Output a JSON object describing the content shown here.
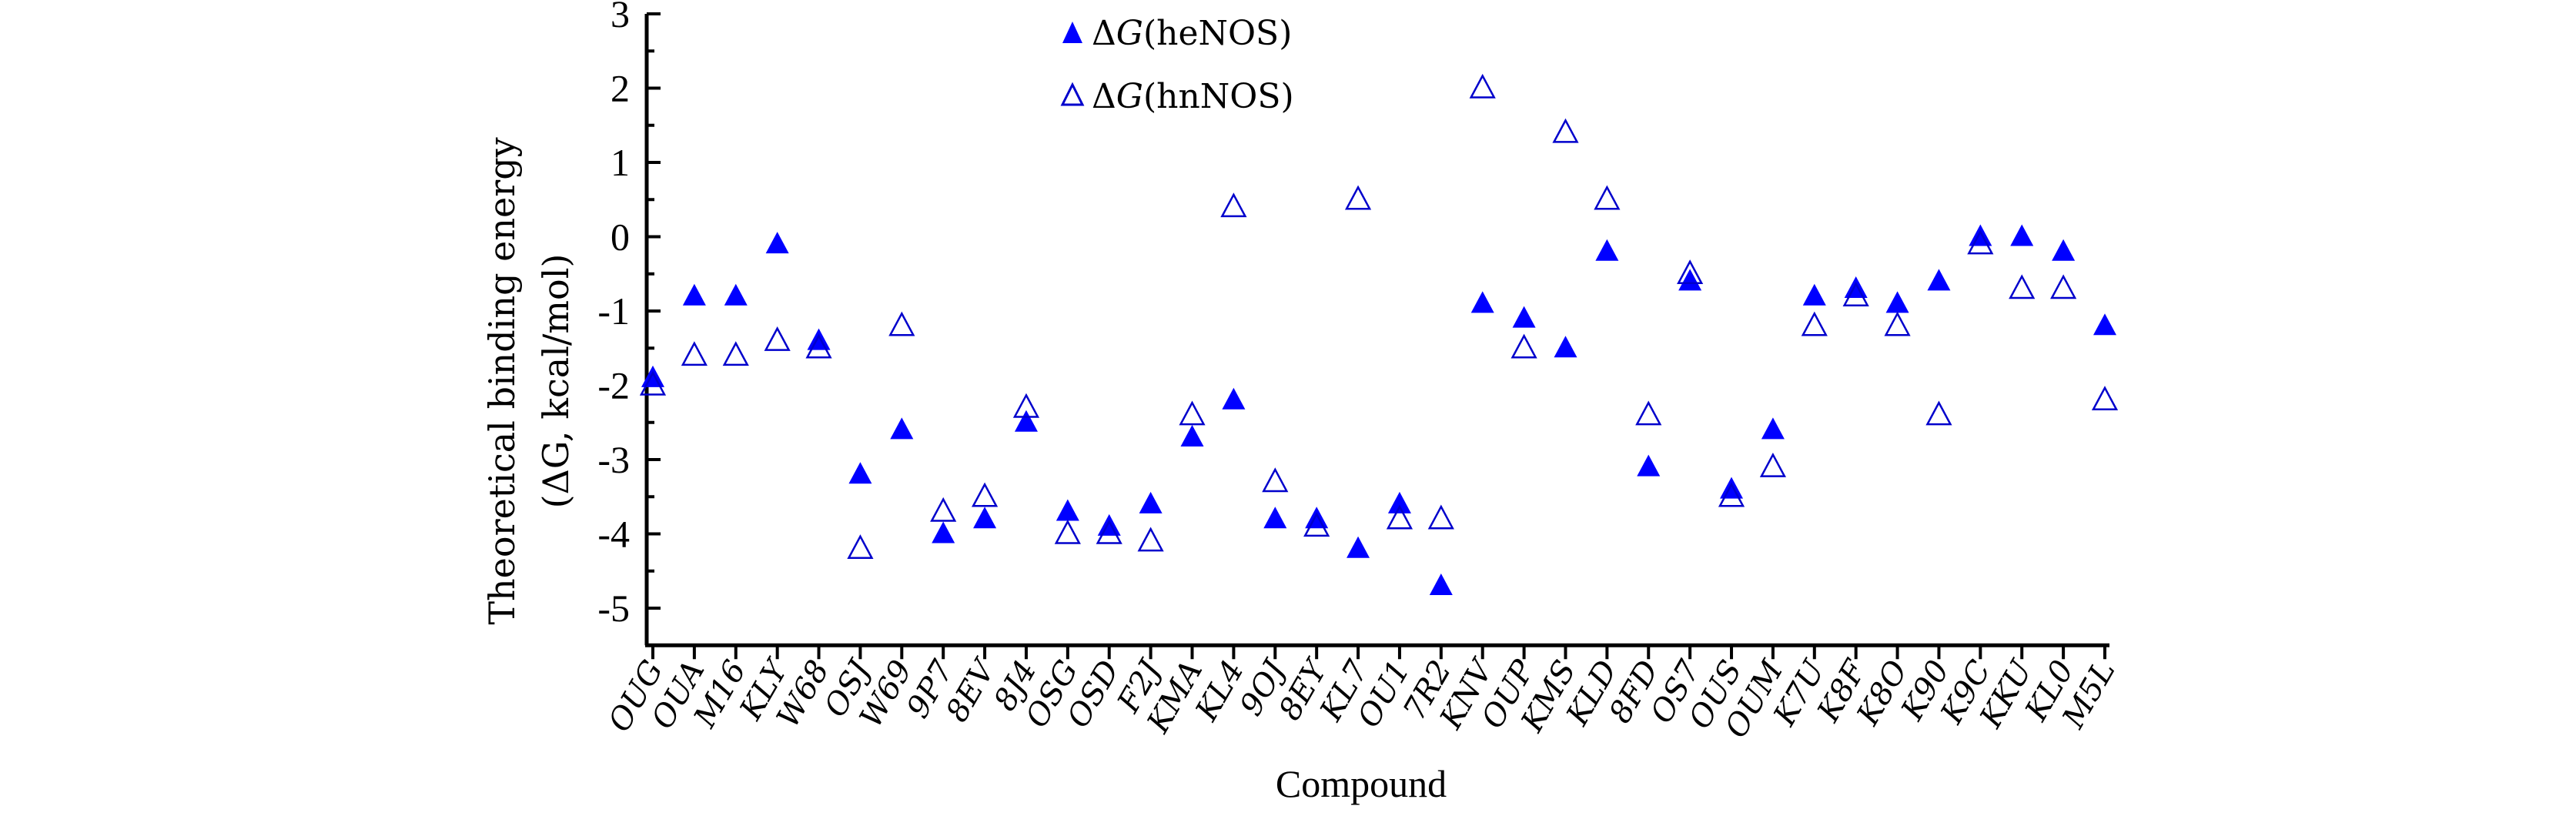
{
  "chart_data": {
    "type": "scatter",
    "title": "",
    "xlabel": "Compound",
    "ylabel": "Theoretical binding energy (ΔG, kcal/mol)",
    "ylabel_line1": "Theoretical binding energy",
    "ylabel_line2": "(ΔG, kcal/mol)",
    "ylim": [
      -5.5,
      3
    ],
    "yticks": [
      3,
      2,
      1,
      0,
      -1,
      -2,
      -3,
      -4,
      -5
    ],
    "grid": false,
    "legend_position": "top-center",
    "categories": [
      "OUG",
      "OUA",
      "M16",
      "KLY",
      "W68",
      "OSJ",
      "W69",
      "9P7",
      "8EV",
      "8J4",
      "OSG",
      "OSD",
      "F2J",
      "KMA",
      "KL4",
      "9OJ",
      "8EY",
      "KL7",
      "OU1",
      "7R2",
      "KNV",
      "OUP",
      "KMS",
      "KLD",
      "8FD",
      "OS7",
      "OUS",
      "OUM",
      "K7U",
      "K8F",
      "K8O",
      "K90",
      "K9C",
      "KKU",
      "KL0",
      "M5L"
    ],
    "series": [
      {
        "name": "ΔG(heNOS)",
        "marker": "filled-triangle",
        "color": "#0000ff",
        "values": [
          -1.9,
          -0.8,
          -0.8,
          -0.1,
          -1.4,
          -3.2,
          -2.6,
          -4.0,
          -3.8,
          -2.5,
          -3.7,
          -3.9,
          -3.6,
          -2.7,
          -2.2,
          -3.8,
          -3.8,
          -4.2,
          -3.6,
          -4.7,
          -0.9,
          -1.1,
          -1.5,
          -0.2,
          -3.1,
          -0.6,
          -3.4,
          -2.6,
          -0.8,
          -0.7,
          -0.9,
          -0.6,
          0.0,
          0.0,
          -0.2,
          -1.2
        ]
      },
      {
        "name": "ΔG(hnNOS)",
        "marker": "open-triangle",
        "color": "#0000cc",
        "values": [
          -2.0,
          -1.6,
          -1.6,
          -1.4,
          -1.5,
          -4.2,
          -1.2,
          -3.7,
          -3.5,
          -2.3,
          -4.0,
          -4.0,
          -4.1,
          -2.4,
          0.4,
          -3.3,
          -3.9,
          0.5,
          -3.8,
          -3.8,
          2.0,
          -1.5,
          1.4,
          0.5,
          -2.4,
          -0.5,
          -3.5,
          -3.1,
          -1.2,
          -0.8,
          -1.2,
          -2.4,
          -0.1,
          -0.7,
          -0.7,
          -2.2
        ]
      }
    ]
  },
  "legend": {
    "items": [
      {
        "label_prefix": "Δ",
        "label_var": "G",
        "label_suffix": "(heNOS)"
      },
      {
        "label_prefix": "Δ",
        "label_var": "G",
        "label_suffix": "(hnNOS)"
      }
    ]
  }
}
